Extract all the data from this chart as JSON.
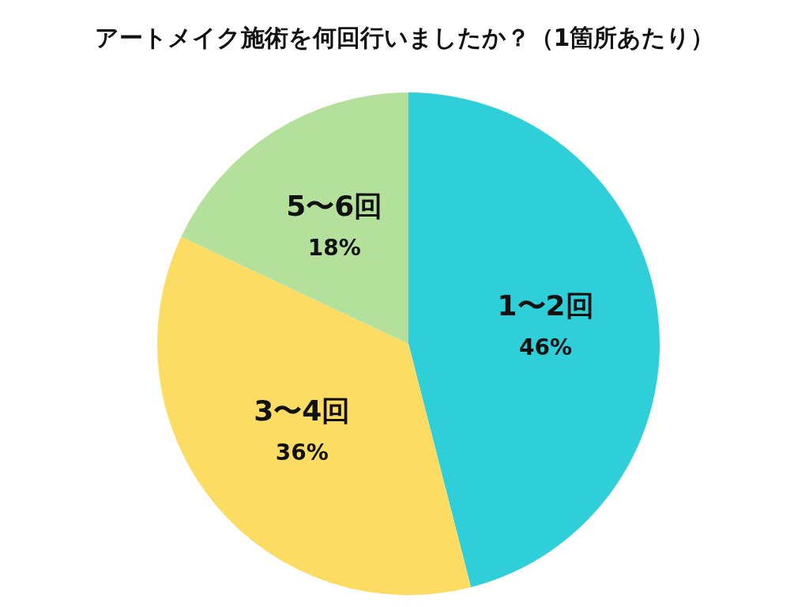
{
  "chart_data": {
    "type": "pie",
    "title": "アートメイク施術を何回行いましたか？（1箇所あたり）",
    "categories": [
      "1〜2回",
      "3〜4回",
      "5〜6回"
    ],
    "values": [
      46,
      36,
      18
    ],
    "colors": [
      "#2ecfd9",
      "#fddc63",
      "#b3e09b"
    ],
    "value_labels": [
      "46%",
      "36%",
      "18%"
    ]
  }
}
